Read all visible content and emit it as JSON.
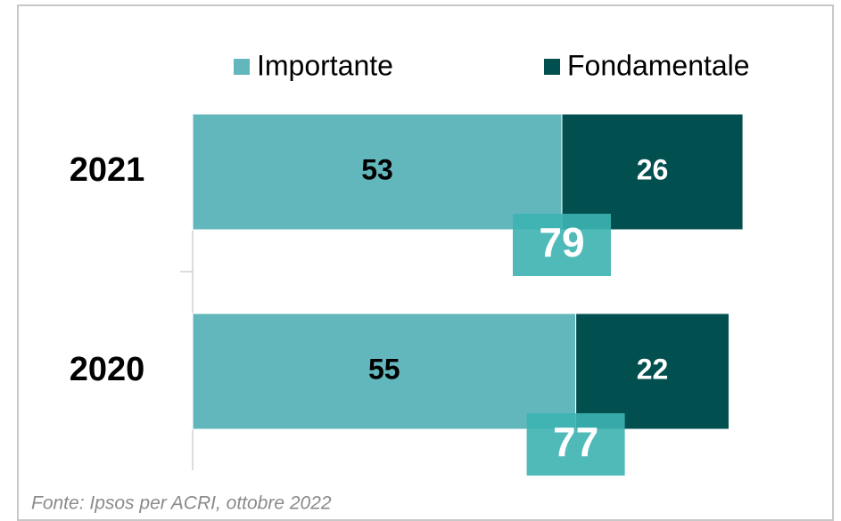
{
  "chart_data": {
    "type": "stacked-bar-horizontal",
    "categories": [
      "2021",
      "2020"
    ],
    "series": [
      {
        "name": "Importante",
        "color": "#62b7bd",
        "values": [
          53,
          55
        ]
      },
      {
        "name": "Fondamentale",
        "color": "#024f4f",
        "values": [
          26,
          22
        ]
      }
    ],
    "totals": [
      79,
      77
    ],
    "total_color": "#3db3b1",
    "xlim": [
      0,
      90
    ],
    "source": "Fonte: Ipsos per ACRI, ottobre 2022"
  }
}
